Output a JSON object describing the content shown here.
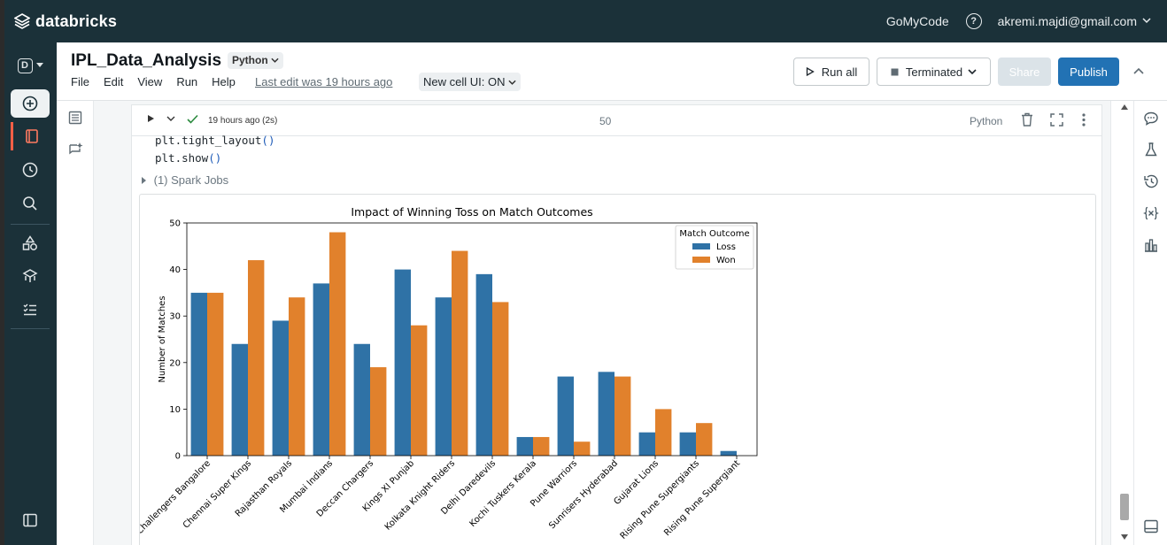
{
  "topbar": {
    "brand": "databricks",
    "workspace": "GoMyCode",
    "help_label": "?",
    "user": "akremi.majdi@gmail.com",
    "user_caret": "⌄"
  },
  "leftnav": {
    "workspace_letter": "D",
    "items": [
      "new",
      "workspace",
      "recents",
      "search",
      "catalog",
      "workflows",
      "compute",
      "jobs"
    ],
    "bottom": "sidebar-toggle"
  },
  "notebook": {
    "title": "IPL_Data_Analysis",
    "language": "Python",
    "menus": [
      "File",
      "Edit",
      "View",
      "Run",
      "Help"
    ],
    "last_edit": "Last edit was 19 hours ago",
    "cell_ui": "New cell UI: ON"
  },
  "toolbar": {
    "run_all": "Run all",
    "cluster_status": "Terminated",
    "share": "Share",
    "publish": "Publish"
  },
  "cell": {
    "timing": "19 hours ago (2s)",
    "number": "50",
    "language": "Python",
    "code_lines": [
      {
        "text": "plt.tight_layout",
        "paren": "()"
      },
      {
        "text": "plt.show",
        "paren": "()"
      }
    ],
    "spark_jobs": "(1) Spark Jobs"
  },
  "chart_data": {
    "type": "bar",
    "title": "Impact of Winning Toss on Match Outcomes",
    "xlabel": "",
    "ylabel": "Number of Matches",
    "ylim": [
      0,
      50
    ],
    "yticks": [
      0,
      10,
      20,
      30,
      40,
      50
    ],
    "legend_title": "Match Outcome",
    "legend_position": "top-right",
    "categories": [
      "Royal Challengers Bangalore",
      "Chennai Super Kings",
      "Rajasthan Royals",
      "Mumbai Indians",
      "Deccan Chargers",
      "Kings XI Punjab",
      "Kolkata Knight Riders",
      "Delhi Daredevils",
      "Kochi Tuskers Kerala",
      "Pune Warriors",
      "Sunrisers Hyderabad",
      "Gujarat Lions",
      "Rising Pune Supergiants",
      "Rising Pune Supergiant"
    ],
    "series": [
      {
        "name": "Loss",
        "color": "#2f72a6",
        "values": [
          35,
          24,
          29,
          37,
          24,
          40,
          34,
          39,
          4,
          17,
          18,
          5,
          5,
          1
        ]
      },
      {
        "name": "Won",
        "color": "#e1812c",
        "values": [
          35,
          42,
          34,
          48,
          19,
          28,
          44,
          33,
          4,
          3,
          17,
          10,
          7,
          0
        ]
      }
    ]
  }
}
